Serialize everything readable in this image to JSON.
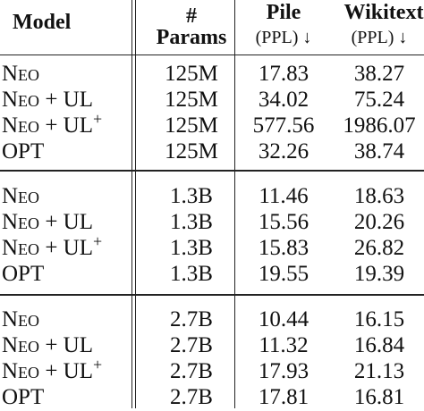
{
  "header": {
    "model": "Model",
    "params_top": "#",
    "params_bottom": "Params",
    "pile": "Pile",
    "pile_sub": "(PPL) ↓",
    "wiki": "Wikitext",
    "wiki_sub": "(PPL) ↓"
  },
  "groups": [
    {
      "rows": [
        {
          "model": "Neo",
          "suffix": "",
          "plus": "",
          "params": "125M",
          "pile": "17.83",
          "wiki": "38.27"
        },
        {
          "model": "Neo",
          "suffix": " + UL",
          "plus": "",
          "params": "125M",
          "pile": "34.02",
          "wiki": "75.24"
        },
        {
          "model": "Neo",
          "suffix": " + UL",
          "plus": "+",
          "params": "125M",
          "pile": "577.56",
          "wiki": "1986.07"
        },
        {
          "model": "OPT",
          "suffix": "",
          "plus": "",
          "params": "125M",
          "pile": "32.26",
          "wiki": "38.74"
        }
      ]
    },
    {
      "rows": [
        {
          "model": "Neo",
          "suffix": "",
          "plus": "",
          "params": "1.3B",
          "pile": "11.46",
          "wiki": "18.63"
        },
        {
          "model": "Neo",
          "suffix": " + UL",
          "plus": "",
          "params": "1.3B",
          "pile": "15.56",
          "wiki": "20.26"
        },
        {
          "model": "Neo",
          "suffix": " + UL",
          "plus": "+",
          "params": "1.3B",
          "pile": "15.83",
          "wiki": "26.82"
        },
        {
          "model": "OPT",
          "suffix": "",
          "plus": "",
          "params": "1.3B",
          "pile": "19.55",
          "wiki": "19.39"
        }
      ]
    },
    {
      "rows": [
        {
          "model": "Neo",
          "suffix": "",
          "plus": "",
          "params": "2.7B",
          "pile": "10.44",
          "wiki": "16.15"
        },
        {
          "model": "Neo",
          "suffix": " + UL",
          "plus": "",
          "params": "2.7B",
          "pile": "11.32",
          "wiki": "16.84"
        },
        {
          "model": "Neo",
          "suffix": " + UL",
          "plus": "+",
          "params": "2.7B",
          "pile": "17.93",
          "wiki": "21.13"
        },
        {
          "model": "OPT",
          "suffix": "",
          "plus": "",
          "params": "2.7B",
          "pile": "17.81",
          "wiki": "16.81"
        }
      ]
    }
  ]
}
